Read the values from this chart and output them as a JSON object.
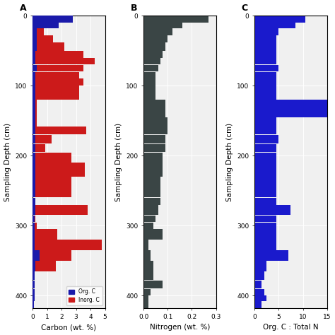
{
  "depth_tops": [
    0,
    10,
    18,
    28,
    38,
    50,
    60,
    70,
    80,
    90,
    100,
    120,
    145,
    158,
    170,
    183,
    195,
    210,
    230,
    260,
    270,
    285,
    295,
    305,
    320,
    335,
    350,
    365,
    378,
    390,
    400,
    408
  ],
  "depth_bottoms": [
    10,
    18,
    28,
    38,
    50,
    60,
    70,
    80,
    90,
    100,
    120,
    145,
    158,
    170,
    183,
    195,
    210,
    230,
    260,
    270,
    285,
    295,
    305,
    320,
    335,
    350,
    365,
    378,
    390,
    400,
    408,
    418
  ],
  "org_c": [
    2.8,
    1.8,
    0.3,
    0.3,
    0.3,
    0.2,
    0.2,
    0.3,
    0.2,
    0.2,
    0.2,
    0.2,
    0.2,
    0.2,
    0.2,
    0.2,
    0.2,
    0.2,
    0.2,
    0.2,
    0.2,
    0.15,
    0.15,
    0.15,
    0.15,
    0.5,
    0.2,
    0.15,
    0.15,
    0.15,
    0.15,
    0.1
  ],
  "inorg_c": [
    0.3,
    0.5,
    0.8,
    1.4,
    2.2,
    3.5,
    4.3,
    3.5,
    3.2,
    3.5,
    3.2,
    0.3,
    0.3,
    3.7,
    1.3,
    0.9,
    2.7,
    3.6,
    2.7,
    0.2,
    3.8,
    0.2,
    0.3,
    1.7,
    4.8,
    2.7,
    1.6,
    0.1,
    0.1,
    0.1,
    0.1,
    0.1
  ],
  "nitrogen": [
    0.27,
    0.16,
    0.12,
    0.1,
    0.09,
    0.08,
    0.07,
    0.06,
    0.05,
    0.05,
    0.05,
    0.09,
    0.1,
    0.1,
    0.09,
    0.09,
    0.08,
    0.08,
    0.07,
    0.07,
    0.06,
    0.05,
    0.04,
    0.08,
    0.02,
    0.03,
    0.04,
    0.04,
    0.08,
    0.03,
    0.02,
    0.02
  ],
  "ratio_cn": [
    10.5,
    8.5,
    5.0,
    4.5,
    4.5,
    4.5,
    4.5,
    5.0,
    4.5,
    4.5,
    4.5,
    15.0,
    4.5,
    4.5,
    5.0,
    4.5,
    4.5,
    4.5,
    4.5,
    4.5,
    7.5,
    4.5,
    4.5,
    4.5,
    4.5,
    7.0,
    2.5,
    2.0,
    1.5,
    2.0,
    2.5,
    1.5
  ],
  "org_c_color": "#1a1aaa",
  "inorg_c_color": "#cc1a1a",
  "nitrogen_color": "#3a4545",
  "ratio_color": "#1a1acc",
  "ylim": [
    418,
    0
  ],
  "yticks": [
    0,
    100,
    200,
    300,
    400
  ],
  "carbon_xlim": [
    0,
    5.0
  ],
  "nitrogen_xlim": [
    0,
    0.3
  ],
  "ratio_xlim": [
    0,
    15.0
  ],
  "carbon_xticks": [
    0.0,
    1.0,
    2.0,
    3.0,
    4.0,
    5.0
  ],
  "nitrogen_xticks": [
    0.0,
    0.1,
    0.2,
    0.3
  ],
  "ratio_xticks": [
    0.0,
    5.0,
    10.0,
    15.0
  ],
  "xlabel_a": "Carbon (wt. %)",
  "xlabel_b": "Nitrogen (wt. %)",
  "xlabel_c": "Org. C : Total N",
  "ylabel": "Sampling Depth (cm)",
  "label_a": "A",
  "label_b": "B",
  "label_c": "C",
  "legend_org": "Org. C",
  "legend_inorg": "Inorg. C",
  "background": "#f0f0f0",
  "figsize": [
    4.74,
    4.74
  ],
  "dpi": 100
}
